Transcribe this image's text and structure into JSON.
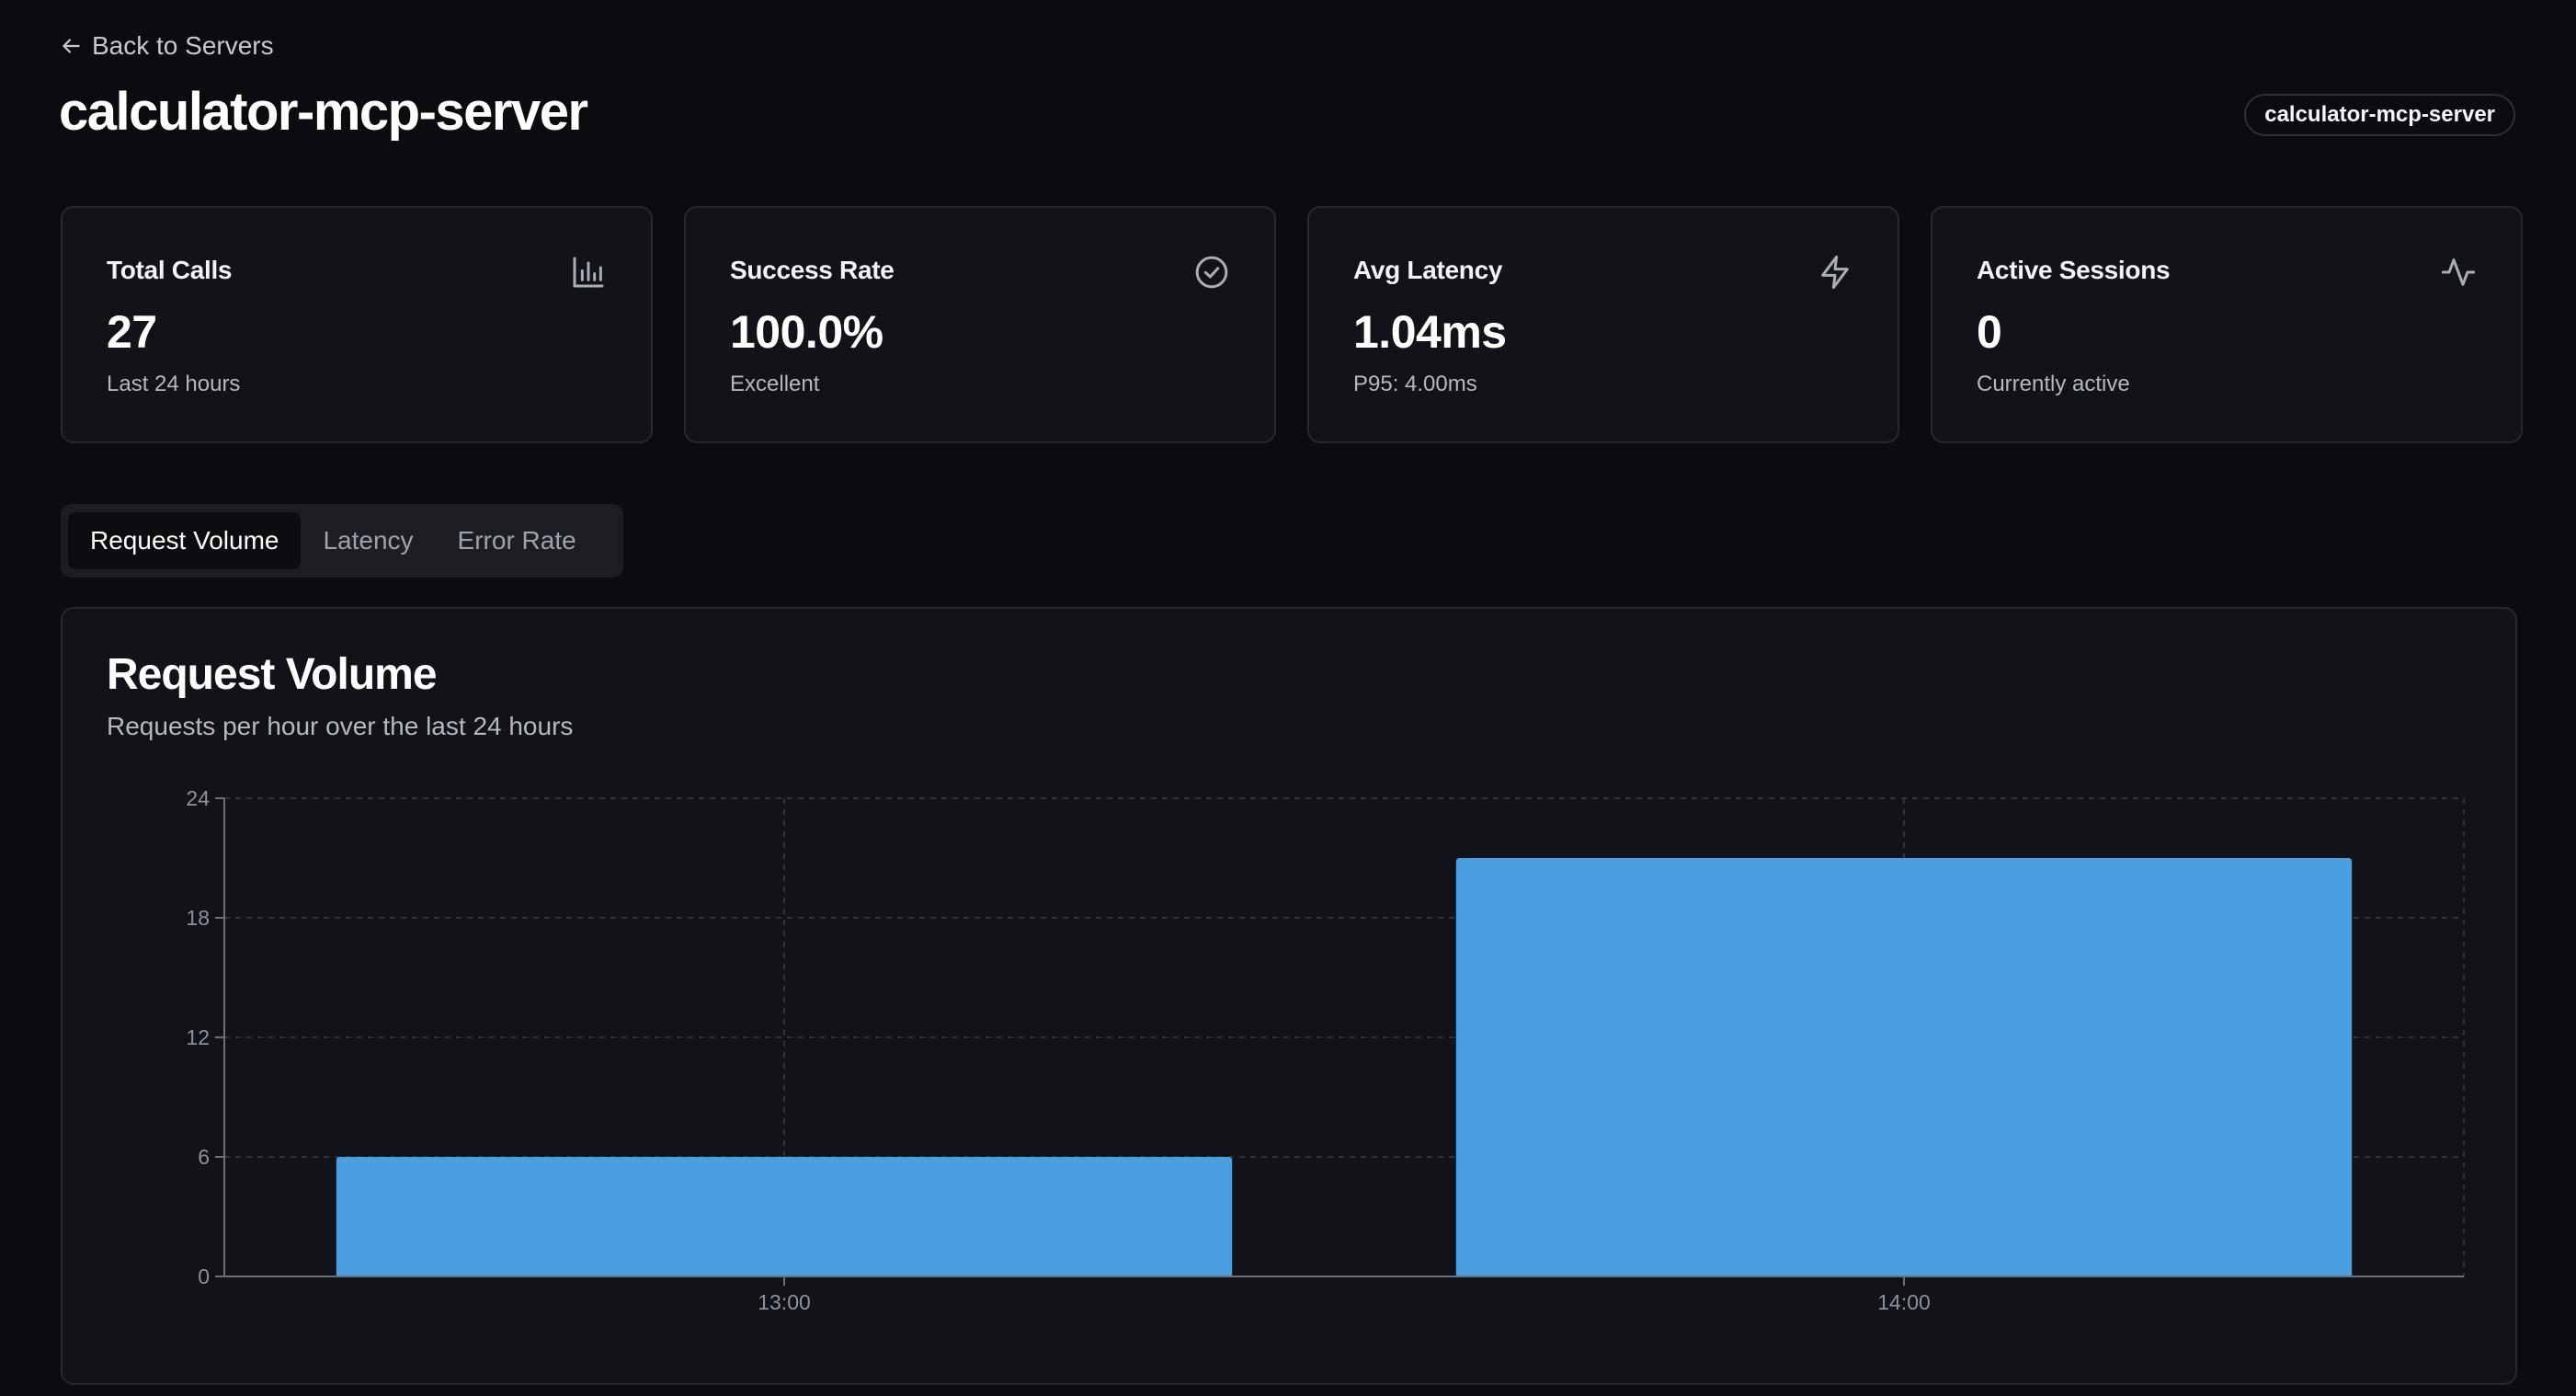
{
  "nav": {
    "back_label": "Back to Servers"
  },
  "header": {
    "title": "calculator-mcp-server",
    "badge": "calculator-mcp-server"
  },
  "stats": [
    {
      "label": "Total Calls",
      "value": "27",
      "sub": "Last 24 hours",
      "icon": "bar-chart-icon"
    },
    {
      "label": "Success Rate",
      "value": "100.0%",
      "sub": "Excellent",
      "icon": "check-circle-icon"
    },
    {
      "label": "Avg Latency",
      "value": "1.04ms",
      "sub": "P95: 4.00ms",
      "icon": "lightning-icon"
    },
    {
      "label": "Active Sessions",
      "value": "0",
      "sub": "Currently active",
      "icon": "activity-icon"
    }
  ],
  "tabs": [
    {
      "label": "Request Volume",
      "active": true
    },
    {
      "label": "Latency",
      "active": false
    },
    {
      "label": "Error Rate",
      "active": false
    }
  ],
  "colors": {
    "accent_bar": "#4a9fe0",
    "background": "#0b0c0f",
    "card": "#111318"
  },
  "chart_data": {
    "type": "bar",
    "title": "Request Volume",
    "subtitle": "Requests per hour over the last 24 hours",
    "categories": [
      "13:00",
      "14:00"
    ],
    "values": [
      6,
      21
    ],
    "yticks": [
      0,
      6,
      12,
      18,
      24
    ],
    "ylim": [
      0,
      24
    ],
    "grid": true,
    "xlabel": "",
    "ylabel": ""
  }
}
